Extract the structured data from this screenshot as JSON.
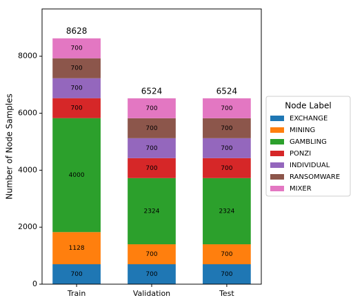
{
  "chart_data": {
    "type": "stacked_bar",
    "y_label": "Number of Node Samples",
    "categories": [
      "Train",
      "Validation",
      "Test"
    ],
    "series": [
      {
        "name": "EXCHANGE",
        "color": "#1f77b4",
        "values": [
          700,
          700,
          700
        ]
      },
      {
        "name": "MINING",
        "color": "#ff7f0e",
        "values": [
          1128,
          700,
          700
        ]
      },
      {
        "name": "GAMBLING",
        "color": "#2ca02c",
        "values": [
          4000,
          2324,
          2324
        ]
      },
      {
        "name": "PONZI",
        "color": "#d62728",
        "values": [
          700,
          700,
          700
        ]
      },
      {
        "name": "INDIVIDUAL",
        "color": "#9467bd",
        "values": [
          700,
          700,
          700
        ]
      },
      {
        "name": "RANSOMWARE",
        "color": "#8c564b",
        "values": [
          700,
          700,
          700
        ]
      },
      {
        "name": "MIXER",
        "color": "#e377c2",
        "values": [
          700,
          700,
          700
        ]
      }
    ],
    "totals": [
      8628,
      6524,
      6524
    ],
    "legend_title": "Node Label",
    "legend_position": "right",
    "ylim": [
      0,
      9660
    ],
    "yticks": [
      0,
      2000,
      4000,
      6000,
      8000
    ],
    "grid": false
  }
}
